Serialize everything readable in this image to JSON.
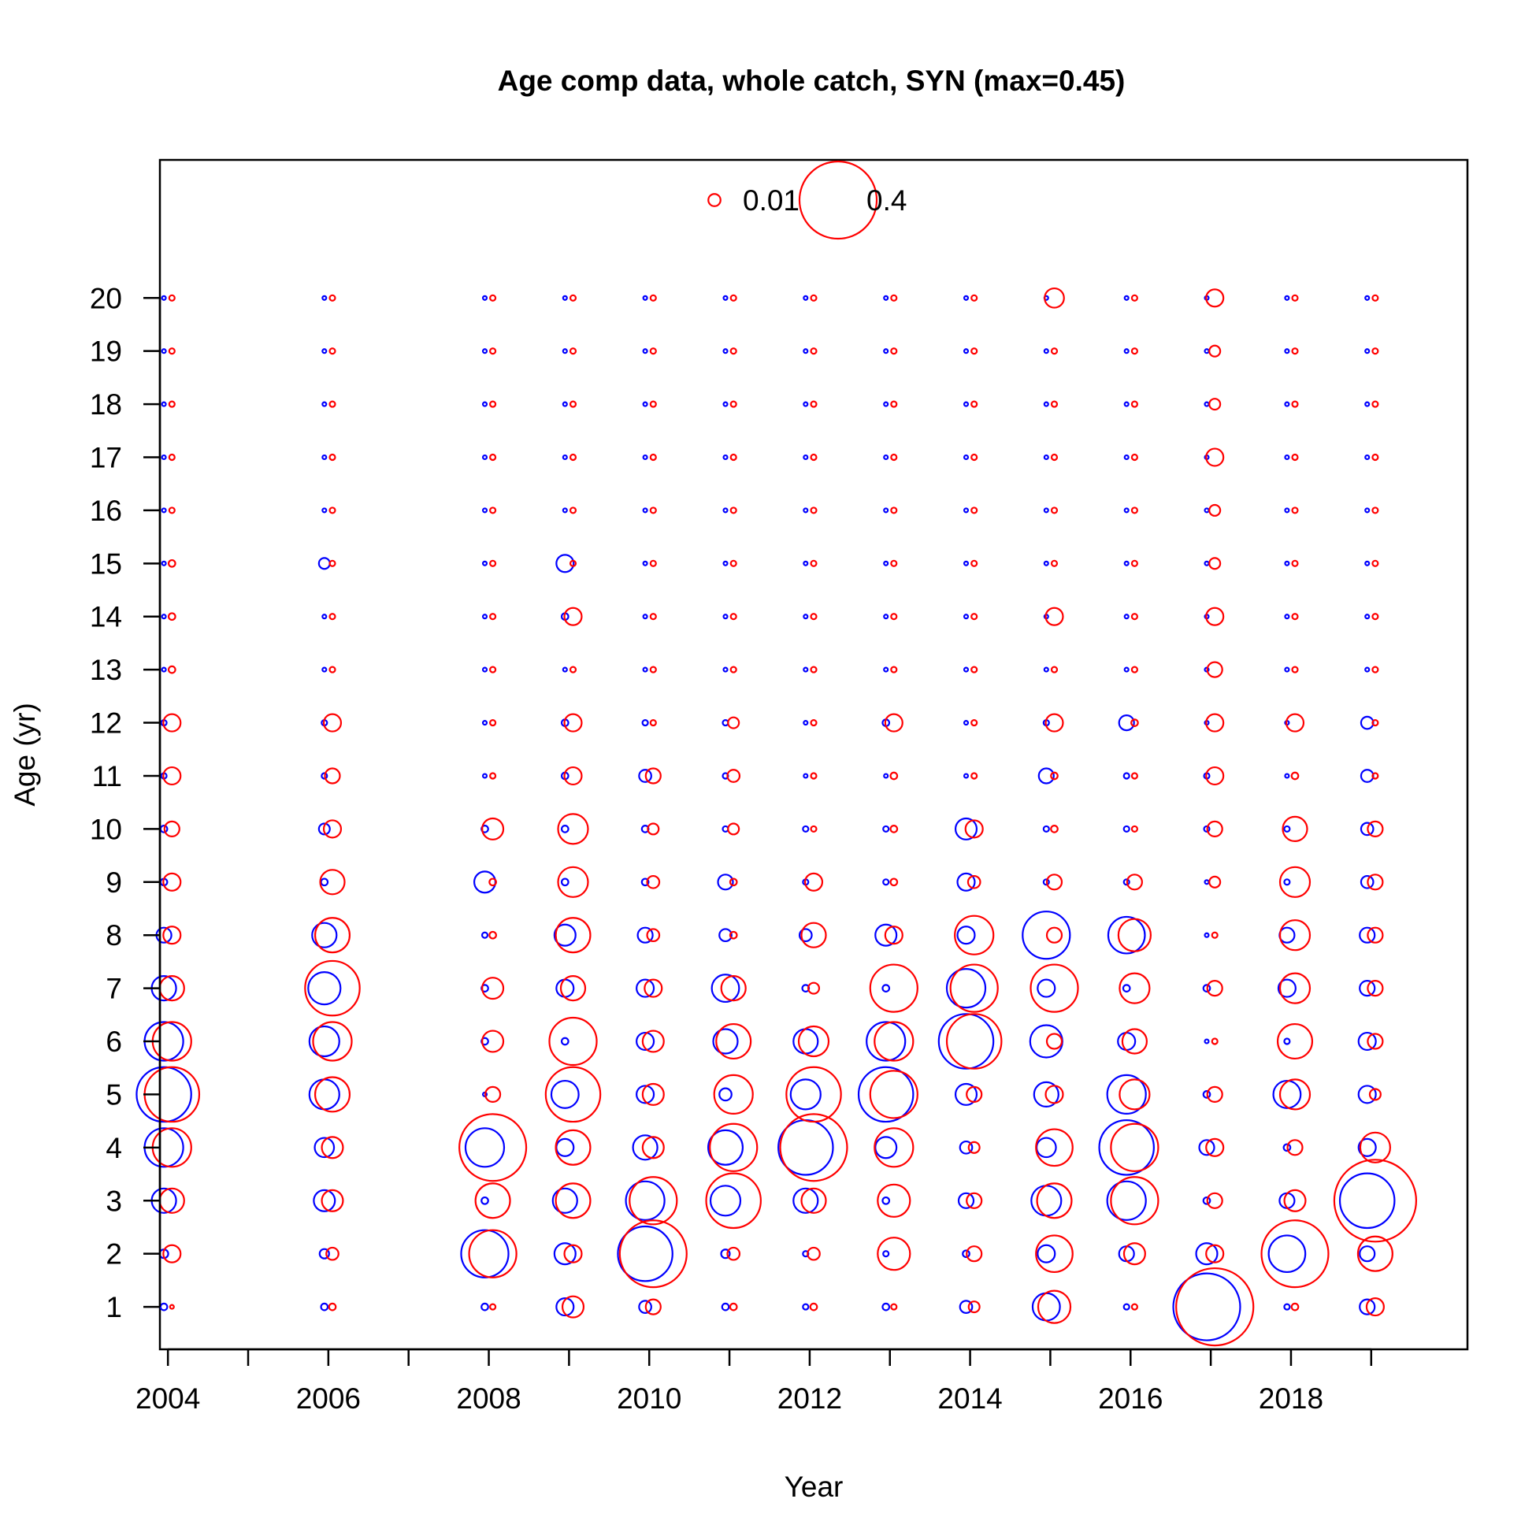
{
  "chart_data": {
    "type": "bubble",
    "title": "Age comp data, whole catch, SYN (max=0.45)",
    "xlabel": "Year",
    "ylabel": "Age (yr)",
    "xlim": [
      2003.9,
      2020.2
    ],
    "ylim": [
      0.2,
      22.6
    ],
    "x_ticks": [
      2004,
      2005,
      2006,
      2007,
      2008,
      2009,
      2010,
      2011,
      2012,
      2013,
      2014,
      2015,
      2016,
      2017,
      2018,
      2019
    ],
    "x_tick_labels": [
      "2004",
      "2006",
      "2008",
      "2010",
      "2012",
      "2014",
      "2016",
      "2018"
    ],
    "x_tick_label_values": [
      2004,
      2006,
      2008,
      2010,
      2012,
      2014,
      2016,
      2018
    ],
    "y_ticks": [
      1,
      2,
      3,
      4,
      5,
      6,
      7,
      8,
      9,
      10,
      11,
      12,
      13,
      14,
      15,
      16,
      17,
      18,
      19,
      20
    ],
    "y_tick_labels": [
      "1",
      "2",
      "3",
      "4",
      "5",
      "6",
      "7",
      "8",
      "9",
      "10",
      "11",
      "12",
      "13",
      "14",
      "15",
      "16",
      "17",
      "18",
      "19",
      "20"
    ],
    "max_value": 0.45,
    "grid": false,
    "legend": {
      "placement": "top-center",
      "entries": [
        {
          "label": "0.01",
          "value": 0.01
        },
        {
          "label": "0.4",
          "value": 0.4
        }
      ]
    },
    "ages": [
      1,
      2,
      3,
      4,
      5,
      6,
      7,
      8,
      9,
      10,
      11,
      12,
      13,
      14,
      15,
      16,
      17,
      18,
      19,
      20
    ],
    "years": [
      2004,
      2006,
      2008,
      2009,
      2010,
      2011,
      2012,
      2013,
      2014,
      2015,
      2016,
      2017,
      2018,
      2019
    ],
    "series": [
      {
        "color": "#0000ff",
        "x_offset": -0.05,
        "values": [
          [
            0.003,
            0.005,
            0.04,
            0.1,
            0.2,
            0.1,
            0.04,
            0.015,
            0.003,
            0.003,
            0.002,
            0.002,
            0.001,
            0.001,
            0.001,
            0.001,
            0.001,
            0.001,
            0.001,
            0.001
          ],
          [
            0.003,
            0.006,
            0.03,
            0.025,
            0.06,
            0.06,
            0.07,
            0.04,
            0.003,
            0.008,
            0.002,
            0.002,
            0.001,
            0.001,
            0.008,
            0.001,
            0.001,
            0.001,
            0.001,
            0.001
          ],
          [
            0.003,
            0.15,
            0.003,
            0.1,
            0.001,
            0.003,
            0.003,
            0.002,
            0.03,
            0.003,
            0.001,
            0.001,
            0.001,
            0.001,
            0.001,
            0.001,
            0.001,
            0.001,
            0.001,
            0.001
          ],
          [
            0.02,
            0.03,
            0.04,
            0.02,
            0.05,
            0.003,
            0.02,
            0.03,
            0.003,
            0.003,
            0.003,
            0.003,
            0.001,
            0.003,
            0.02,
            0.001,
            0.001,
            0.001,
            0.001,
            0.001
          ],
          [
            0.01,
            0.2,
            0.1,
            0.04,
            0.02,
            0.02,
            0.02,
            0.015,
            0.003,
            0.003,
            0.01,
            0.002,
            0.001,
            0.001,
            0.001,
            0.001,
            0.001,
            0.001,
            0.001,
            0.001
          ],
          [
            0.003,
            0.005,
            0.06,
            0.08,
            0.01,
            0.04,
            0.05,
            0.01,
            0.015,
            0.002,
            0.002,
            0.002,
            0.001,
            0.001,
            0.001,
            0.001,
            0.001,
            0.001,
            0.001,
            0.001
          ],
          [
            0.002,
            0.002,
            0.04,
            0.2,
            0.06,
            0.04,
            0.003,
            0.01,
            0.002,
            0.002,
            0.001,
            0.001,
            0.001,
            0.001,
            0.001,
            0.001,
            0.001,
            0.001,
            0.001,
            0.001
          ],
          [
            0.003,
            0.002,
            0.003,
            0.03,
            0.2,
            0.1,
            0.003,
            0.03,
            0.002,
            0.002,
            0.001,
            0.003,
            0.001,
            0.001,
            0.001,
            0.001,
            0.001,
            0.001,
            0.001,
            0.001
          ],
          [
            0.01,
            0.003,
            0.015,
            0.01,
            0.03,
            0.2,
            0.1,
            0.02,
            0.02,
            0.03,
            0.001,
            0.001,
            0.001,
            0.001,
            0.001,
            0.001,
            0.001,
            0.001,
            0.001,
            0.001
          ],
          [
            0.05,
            0.02,
            0.06,
            0.025,
            0.04,
            0.07,
            0.02,
            0.15,
            0.002,
            0.002,
            0.015,
            0.002,
            0.001,
            0.001,
            0.001,
            0.001,
            0.001,
            0.001,
            0.001,
            0.001
          ],
          [
            0.002,
            0.015,
            0.1,
            0.2,
            0.1,
            0.02,
            0.003,
            0.09,
            0.002,
            0.002,
            0.002,
            0.015,
            0.001,
            0.001,
            0.001,
            0.001,
            0.001,
            0.001,
            0.001,
            0.001
          ],
          [
            0.3,
            0.03,
            0.003,
            0.015,
            0.003,
            0.001,
            0.003,
            0.001,
            0.001,
            0.002,
            0.002,
            0.001,
            0.001,
            0.001,
            0.001,
            0.001,
            0.001,
            0.001,
            0.001,
            0.001
          ],
          [
            0.002,
            0.09,
            0.015,
            0.003,
            0.05,
            0.002,
            0.02,
            0.015,
            0.002,
            0.002,
            0.001,
            0.001,
            0.001,
            0.001,
            0.001,
            0.001,
            0.001,
            0.001,
            0.001,
            0.001
          ],
          [
            0.015,
            0.015,
            0.2,
            0.02,
            0.02,
            0.02,
            0.015,
            0.015,
            0.01,
            0.01,
            0.01,
            0.01,
            0.001,
            0.001,
            0.001,
            0.001,
            0.001,
            0.001,
            0.001,
            0.001
          ]
        ]
      },
      {
        "color": "#ff0000",
        "x_offset": 0.05,
        "values": [
          [
            0.001,
            0.02,
            0.04,
            0.1,
            0.2,
            0.1,
            0.04,
            0.02,
            0.02,
            0.015,
            0.02,
            0.02,
            0.003,
            0.003,
            0.003,
            0.002,
            0.002,
            0.002,
            0.002,
            0.002
          ],
          [
            0.003,
            0.01,
            0.03,
            0.03,
            0.08,
            0.1,
            0.2,
            0.08,
            0.04,
            0.02,
            0.015,
            0.02,
            0.002,
            0.002,
            0.002,
            0.002,
            0.002,
            0.002,
            0.002,
            0.002
          ],
          [
            0.002,
            0.15,
            0.08,
            0.3,
            0.015,
            0.03,
            0.03,
            0.003,
            0.003,
            0.03,
            0.002,
            0.002,
            0.002,
            0.002,
            0.002,
            0.002,
            0.002,
            0.002,
            0.002,
            0.002
          ],
          [
            0.03,
            0.02,
            0.08,
            0.08,
            0.2,
            0.15,
            0.04,
            0.08,
            0.06,
            0.06,
            0.02,
            0.02,
            0.002,
            0.02,
            0.002,
            0.002,
            0.002,
            0.002,
            0.002,
            0.002
          ],
          [
            0.015,
            0.3,
            0.15,
            0.03,
            0.03,
            0.03,
            0.02,
            0.01,
            0.01,
            0.008,
            0.015,
            0.002,
            0.002,
            0.002,
            0.002,
            0.002,
            0.002,
            0.002,
            0.002,
            0.002
          ],
          [
            0.003,
            0.01,
            0.2,
            0.15,
            0.1,
            0.08,
            0.04,
            0.003,
            0.003,
            0.008,
            0.01,
            0.008,
            0.002,
            0.002,
            0.002,
            0.002,
            0.002,
            0.002,
            0.002,
            0.002
          ],
          [
            0.003,
            0.01,
            0.04,
            0.3,
            0.2,
            0.06,
            0.008,
            0.04,
            0.02,
            0.002,
            0.002,
            0.002,
            0.002,
            0.002,
            0.002,
            0.002,
            0.002,
            0.002,
            0.002,
            0.002
          ],
          [
            0.002,
            0.07,
            0.07,
            0.1,
            0.15,
            0.1,
            0.15,
            0.02,
            0.003,
            0.003,
            0.003,
            0.02,
            0.002,
            0.002,
            0.002,
            0.002,
            0.002,
            0.002,
            0.002,
            0.002
          ],
          [
            0.008,
            0.015,
            0.015,
            0.008,
            0.015,
            0.2,
            0.15,
            0.1,
            0.01,
            0.02,
            0.002,
            0.002,
            0.002,
            0.002,
            0.002,
            0.002,
            0.002,
            0.002,
            0.002,
            0.002
          ],
          [
            0.07,
            0.09,
            0.08,
            0.09,
            0.02,
            0.015,
            0.15,
            0.015,
            0.015,
            0.003,
            0.003,
            0.02,
            0.002,
            0.02,
            0.002,
            0.002,
            0.002,
            0.002,
            0.002,
            0.025
          ],
          [
            0.002,
            0.03,
            0.15,
            0.15,
            0.06,
            0.04,
            0.06,
            0.07,
            0.015,
            0.002,
            0.002,
            0.003,
            0.002,
            0.002,
            0.002,
            0.002,
            0.002,
            0.002,
            0.002,
            0.002
          ],
          [
            0.4,
            0.02,
            0.015,
            0.02,
            0.015,
            0.002,
            0.015,
            0.002,
            0.008,
            0.015,
            0.02,
            0.02,
            0.015,
            0.02,
            0.008,
            0.008,
            0.02,
            0.008,
            0.008,
            0.02
          ],
          [
            0.003,
            0.3,
            0.03,
            0.015,
            0.06,
            0.08,
            0.06,
            0.06,
            0.06,
            0.04,
            0.003,
            0.02,
            0.002,
            0.002,
            0.002,
            0.002,
            0.002,
            0.002,
            0.002,
            0.002
          ],
          [
            0.02,
            0.08,
            0.45,
            0.06,
            0.008,
            0.015,
            0.015,
            0.015,
            0.015,
            0.015,
            0.002,
            0.002,
            0.002,
            0.002,
            0.002,
            0.002,
            0.002,
            0.002,
            0.002,
            0.002
          ]
        ]
      }
    ]
  }
}
